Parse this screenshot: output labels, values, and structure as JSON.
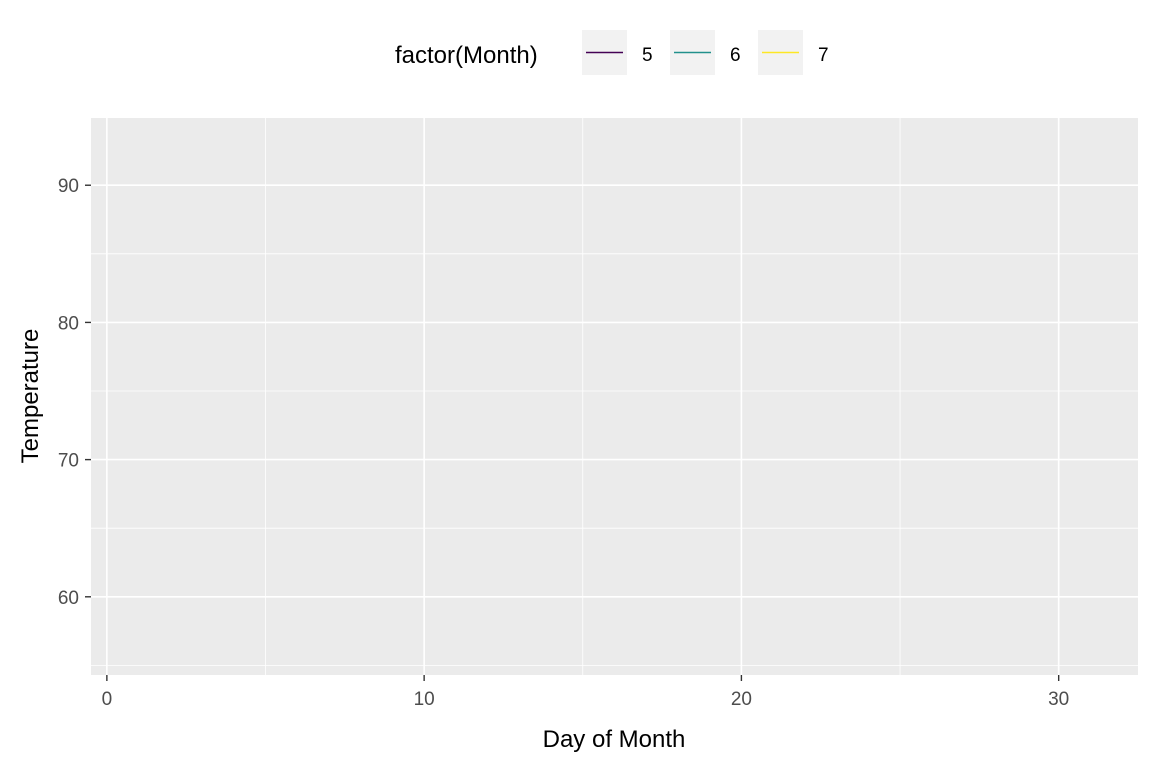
{
  "chart_data": {
    "type": "line",
    "title": "",
    "xlabel": "Day of Month",
    "ylabel": "Temperature",
    "xlim": [
      -0.5,
      32.5
    ],
    "ylim": [
      54.3,
      94.9
    ],
    "x_ticks": [
      0,
      10,
      20,
      30
    ],
    "x_minor_ticks": [
      5,
      15,
      25
    ],
    "y_ticks": [
      60,
      70,
      80,
      90
    ],
    "y_minor_ticks": [
      55,
      65,
      75,
      85
    ],
    "grid": true,
    "legend": {
      "title": "factor(Month)",
      "position": "top",
      "entries": [
        "5",
        "6",
        "7"
      ]
    },
    "series": [
      {
        "name": "5",
        "color": "#440154",
        "x": [],
        "y": []
      },
      {
        "name": "6",
        "color": "#21908C",
        "x": [],
        "y": []
      },
      {
        "name": "7",
        "color": "#FDE725",
        "x": [],
        "y": []
      }
    ],
    "colors": {
      "panel_background": "#EBEBEB",
      "grid_major": "#FFFFFF",
      "legend_key_background": "#F2F2F2"
    }
  }
}
